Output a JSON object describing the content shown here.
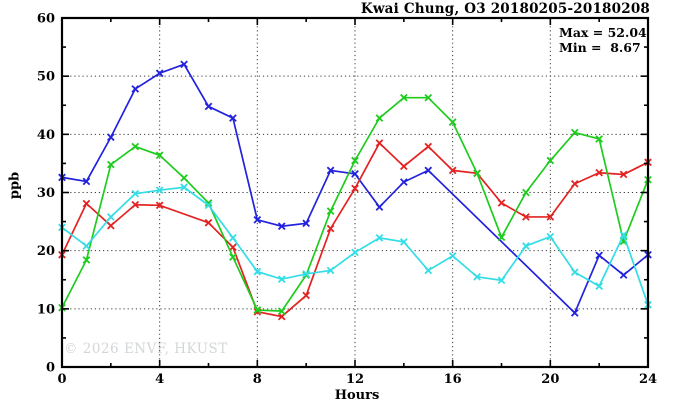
{
  "chart_data": {
    "type": "line",
    "title": "Kwai Chung, O3 20180205-20180208",
    "annotations": {
      "max": "Max = 52.04",
      "min": "Min =  8.67"
    },
    "xlabel": "Hours",
    "ylabel": "ppb",
    "watermark": "© 2026 ENVF, HKUST",
    "xlim": [
      0,
      24
    ],
    "ylim": [
      0,
      60
    ],
    "x_major_ticks": [
      0,
      4,
      8,
      12,
      16,
      20,
      24
    ],
    "x_minor_ticks": [
      2,
      6,
      10,
      14,
      18,
      22
    ],
    "y_major_ticks": [
      0,
      10,
      20,
      30,
      40,
      50,
      60
    ],
    "y_minor_ticks": [
      5,
      15,
      25,
      35,
      45,
      55
    ],
    "grid": "dotted-at-major-ticks",
    "legend_position": "none",
    "x": [
      0,
      1,
      2,
      3,
      4,
      5,
      6,
      7,
      8,
      9,
      10,
      11,
      12,
      13,
      14,
      15,
      16,
      17,
      18,
      19,
      20,
      21,
      22,
      23,
      24
    ],
    "series": [
      {
        "name": "blue",
        "color": "#2222dd",
        "values": [
          32.6,
          31.9,
          39.5,
          47.8,
          50.5,
          52.04,
          44.8,
          42.8,
          25.3,
          24.2,
          24.7,
          33.8,
          33.2,
          27.5,
          31.8,
          33.8,
          null,
          null,
          null,
          null,
          null,
          9.3,
          19.2,
          15.8,
          19.3
        ]
      },
      {
        "name": "red",
        "color": "#e32222",
        "values": [
          19.3,
          28.1,
          24.3,
          27.9,
          27.8,
          null,
          24.8,
          20.6,
          9.5,
          8.67,
          12.3,
          23.8,
          30.7,
          38.5,
          34.5,
          37.9,
          33.8,
          33.3,
          28.2,
          25.8,
          25.8,
          31.5,
          33.4,
          33.1,
          35.2
        ]
      },
      {
        "name": "green",
        "color": "#1ecc1e",
        "values": [
          10.2,
          18.4,
          34.8,
          37.9,
          36.4,
          32.5,
          28.2,
          18.9,
          9.8,
          9.6,
          15.8,
          26.8,
          35.5,
          42.8,
          46.3,
          46.3,
          42.1,
          33.3,
          22.3,
          30.0,
          35.5,
          40.3,
          39.2,
          21.6,
          32.2
        ]
      },
      {
        "name": "cyan",
        "color": "#33dde6",
        "values": [
          24.0,
          20.8,
          25.8,
          29.8,
          30.4,
          30.9,
          27.8,
          22.2,
          16.4,
          15.1,
          16.0,
          16.6,
          19.7,
          22.2,
          21.5,
          16.6,
          19.1,
          15.5,
          14.9,
          20.8,
          22.4,
          16.3,
          13.9,
          22.7,
          10.7
        ]
      }
    ]
  }
}
